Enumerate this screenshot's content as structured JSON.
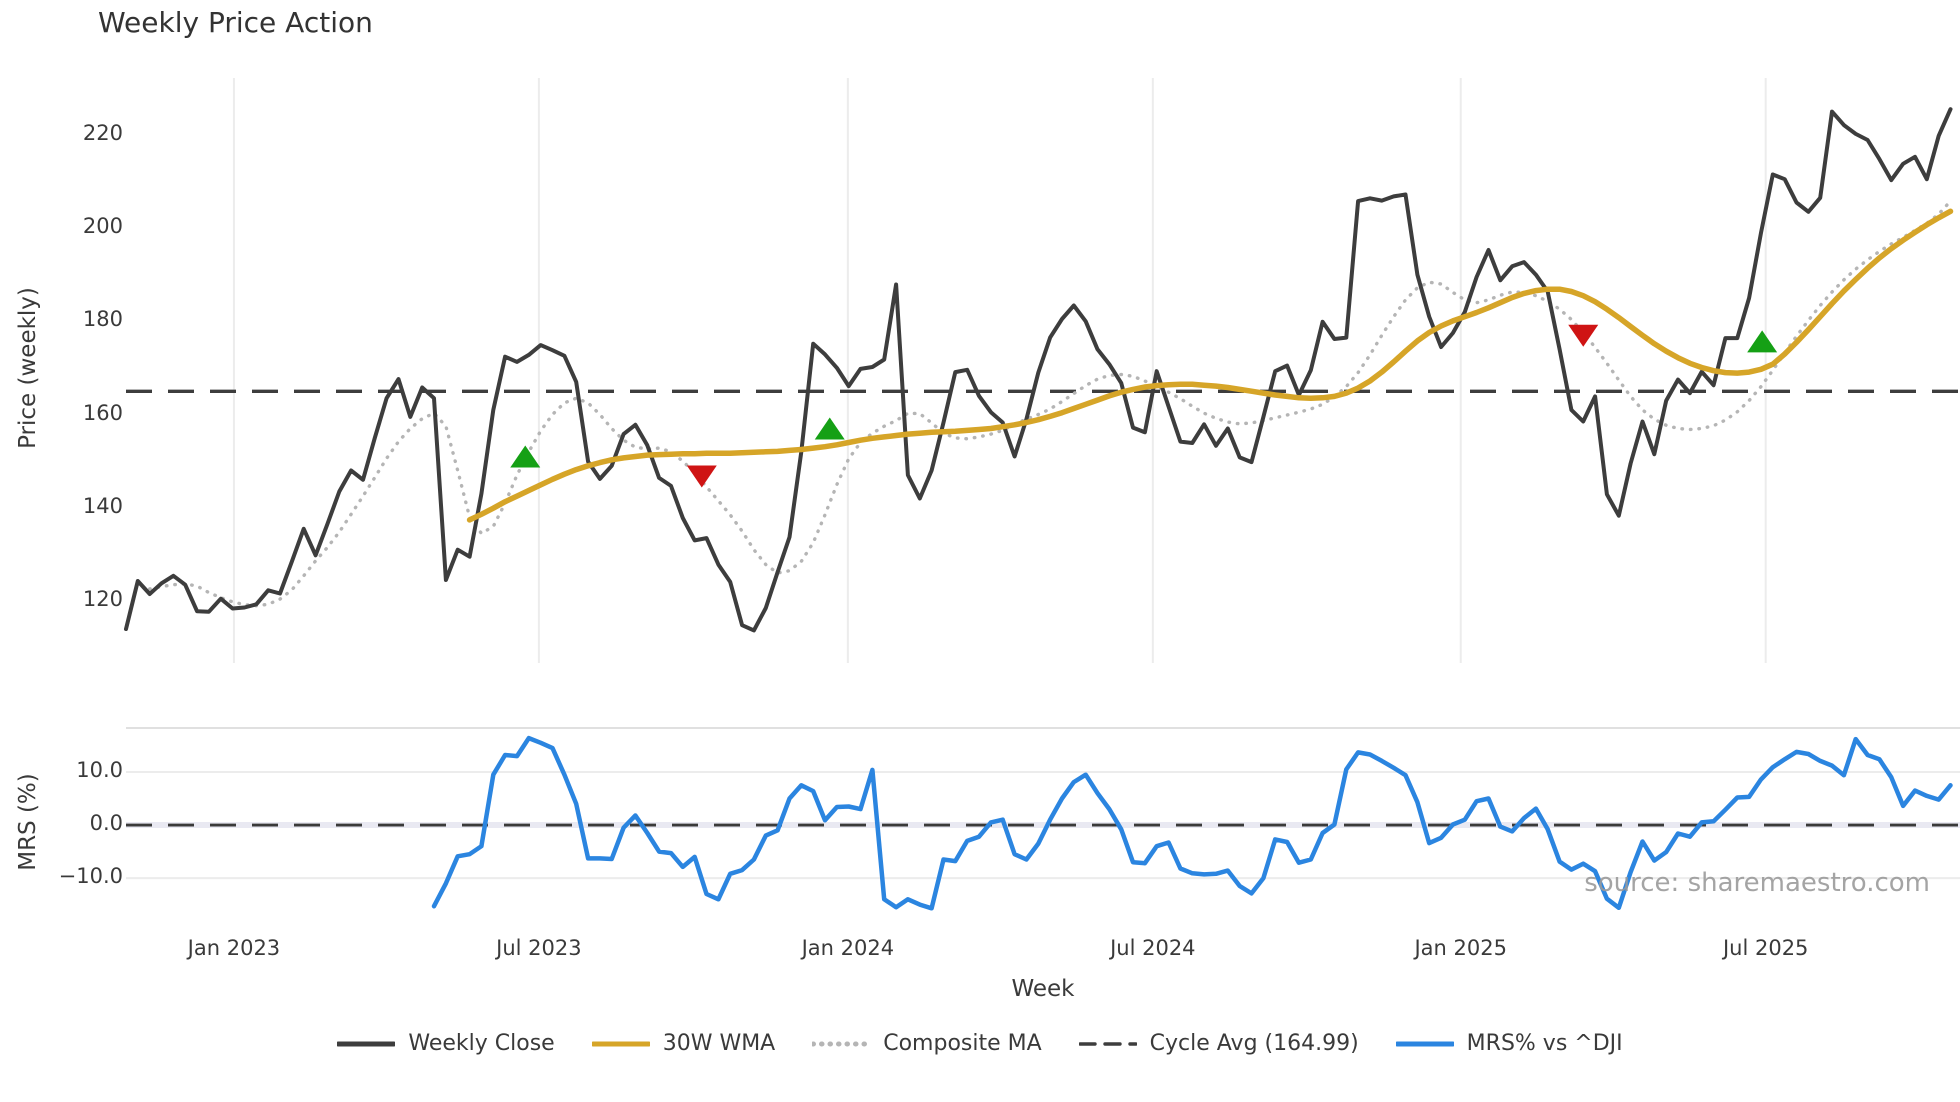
{
  "chart_data": {
    "type": "line",
    "title": "Weekly Price Action",
    "xlabel": "Week",
    "ylabel_main": "Price (weekly)",
    "ylabel_sub": "MRS (%)",
    "watermark": "source: sharemaestro.com",
    "cycle_avg": 164.99,
    "x_range": [
      0,
      154.8
    ],
    "x_unit": "week-index",
    "main_panel": {
      "ylim": [
        106.7,
        232.2
      ],
      "yticks": [
        {
          "label": "220",
          "v": 220
        },
        {
          "label": "200",
          "v": 200
        },
        {
          "label": "180",
          "v": 180
        },
        {
          "label": "160",
          "v": 160
        },
        {
          "label": "140",
          "v": 140
        },
        {
          "label": "120",
          "v": 120
        }
      ],
      "grid": "vertical-only"
    },
    "sub_panel": {
      "ylim": [
        -16.4,
        18.3
      ],
      "yticks": [
        {
          "label": "10.0",
          "v": 10
        },
        {
          "label": "0.0",
          "v": 0
        },
        {
          "label": "−10.0",
          "v": -10
        }
      ],
      "zero_line_dashed": true,
      "grid": "horizontal-only"
    },
    "xticks": [
      {
        "label": "Jan 2023",
        "i": 9.11
      },
      {
        "label": "Jul 2023",
        "i": 34.85
      },
      {
        "label": "Jan 2024",
        "i": 60.93
      },
      {
        "label": "Jul 2024",
        "i": 86.67
      },
      {
        "label": "Jan 2025",
        "i": 112.66
      },
      {
        "label": "Jul 2025",
        "i": 138.4
      }
    ],
    "colors": {
      "close": "#3d3d3d",
      "wma": "#d6a528",
      "composite": "#b5b5b5",
      "cycle": "#3d3d3d",
      "mrs": "#2b85e0",
      "buy": "#15a015",
      "sell": "#cf1414",
      "grid": "#ececec",
      "panel_border": "#d6d6d6",
      "zero_underlay": "#e9e9f2"
    },
    "series": [
      {
        "name": "Weekly Close",
        "style": "solid",
        "width": 4,
        "color_key": "close",
        "panel": "main",
        "start_index": 0,
        "values": [
          114,
          124.3,
          121.5,
          123.8,
          125.4,
          123.5,
          117.8,
          117.7,
          120.5,
          118.4,
          118.6,
          119.3,
          122.3,
          121.6,
          128.5,
          135.5,
          129.8,
          136.5,
          143.5,
          148,
          146,
          155,
          163.5,
          167.6,
          159.5,
          165.8,
          163.5,
          124.5,
          131,
          129.5,
          143,
          161,
          172.4,
          171.3,
          172.8,
          174.9,
          173.8,
          172.6,
          167,
          149.9,
          146.2,
          149,
          155.8,
          157.8,
          153.4,
          146.4,
          144.7,
          137.8,
          133,
          133.5,
          127.8,
          124.1,
          114.8,
          113.7,
          118.5,
          126.2,
          133.7,
          152,
          175.2,
          172.9,
          170,
          166.1,
          169.8,
          170.2,
          171.8,
          187.9,
          147,
          142,
          148,
          158.3,
          169.1,
          169.6,
          164,
          160.5,
          158.3,
          151,
          159,
          169,
          176.5,
          180.5,
          183.4,
          180,
          174,
          170.8,
          166.8,
          157.2,
          156.2,
          169.3,
          161.7,
          154.2,
          153.9,
          157.9,
          153.3,
          157,
          150.8,
          149.8,
          159.5,
          169.3,
          170.5,
          164.2,
          169.5,
          179.9,
          176.2,
          176.5,
          205.8,
          206.4,
          205.9,
          206.8,
          207.2,
          190,
          181,
          174.5,
          177.5,
          182,
          189.5,
          195.3,
          188.8,
          191.8,
          192.7,
          190,
          186.4,
          174,
          161,
          158.5,
          163.9,
          142.9,
          138.3,
          149.5,
          158.5,
          151.5,
          163,
          167.5,
          164.6,
          169.2,
          166.3,
          176.4,
          176.4,
          185,
          199,
          211.5,
          210.5,
          205.5,
          203.5,
          206.5,
          225,
          222.1,
          220.2,
          218.9,
          214.8,
          210.3,
          213.8,
          215.3,
          210.5,
          219.8,
          225.5
        ]
      },
      {
        "name": "30W WMA",
        "style": "solid",
        "width": 5.5,
        "color_key": "wma",
        "panel": "main",
        "start_index": 29,
        "values": [
          137.4,
          138.6,
          139.9,
          141.3,
          142.5,
          143.7,
          144.9,
          146.1,
          147.2,
          148.2,
          149,
          149.7,
          150.3,
          150.7,
          151,
          151.3,
          151.4,
          151.5,
          151.6,
          151.6,
          151.7,
          151.7,
          151.7,
          151.8,
          151.9,
          152,
          152.1,
          152.3,
          152.5,
          152.8,
          153.1,
          153.5,
          154,
          154.5,
          154.9,
          155.2,
          155.5,
          155.8,
          156,
          156.2,
          156.3,
          156.4,
          156.6,
          156.8,
          157,
          157.4,
          157.8,
          158.3,
          158.9,
          159.6,
          160.4,
          161.3,
          162.2,
          163.1,
          164,
          164.8,
          165.4,
          165.9,
          166.2,
          166.4,
          166.5,
          166.5,
          166.3,
          166.1,
          165.8,
          165.4,
          165,
          164.6,
          164.2,
          163.9,
          163.6,
          163.5,
          163.6,
          163.9,
          164.6,
          165.7,
          167.2,
          169.1,
          171.3,
          173.6,
          175.8,
          177.6,
          179,
          180.1,
          181,
          181.9,
          182.9,
          184,
          185.1,
          186,
          186.6,
          186.9,
          186.9,
          186.4,
          185.5,
          184.2,
          182.6,
          180.8,
          178.9,
          177,
          175.2,
          173.6,
          172.2,
          171,
          170.1,
          169.4,
          169,
          168.9,
          169.1,
          169.7,
          170.8,
          173,
          175.5,
          178.2,
          181,
          183.8,
          186.5,
          189,
          191.4,
          193.6,
          195.6,
          197.4,
          199.1,
          200.7,
          202.2,
          203.6
        ]
      },
      {
        "name": "Composite MA",
        "style": "dotted",
        "width": 3.4,
        "color_key": "composite",
        "panel": "main",
        "start_index": 2,
        "values": [
          122.6,
          123.1,
          123.5,
          123.7,
          123.2,
          121.8,
          120.7,
          119.8,
          119.2,
          119,
          119.3,
          120.4,
          122.4,
          125.4,
          128.6,
          131.5,
          134.8,
          138.6,
          142.5,
          146.5,
          150.6,
          154.2,
          157,
          159.1,
          160.3,
          157.5,
          148,
          138,
          134.5,
          136,
          141,
          147,
          152,
          156.5,
          160,
          162.5,
          163.5,
          162.5,
          160,
          157,
          154.5,
          153,
          152.6,
          152.8,
          152,
          150,
          147.5,
          144.5,
          141.5,
          138.5,
          135,
          131,
          127.8,
          126,
          126.5,
          128.5,
          132.5,
          138.5,
          145,
          150.5,
          154,
          156,
          157.5,
          158.7,
          160.3,
          160.2,
          158.2,
          156,
          155,
          154.8,
          155.2,
          155.8,
          156.6,
          158,
          159,
          160,
          161.2,
          162.8,
          164.5,
          166.2,
          167.6,
          168.4,
          168.6,
          168.2,
          167.2,
          166,
          164.8,
          163.4,
          161.8,
          160.3,
          159.2,
          158.4,
          158,
          158.2,
          158.7,
          159.3,
          159.9,
          160.5,
          161.2,
          162.2,
          163.8,
          166,
          169,
          172.8,
          177,
          181,
          184.6,
          187.2,
          188.4,
          188,
          186.2,
          184.6,
          184,
          184.6,
          185.6,
          186.3,
          186.2,
          185.5,
          184.3,
          182.6,
          180.4,
          177.6,
          174.4,
          171,
          167.4,
          163.9,
          161,
          159,
          157.7,
          157,
          156.8,
          157,
          157.6,
          158.8,
          160.6,
          163,
          166,
          169.5,
          173.2,
          176.8,
          180.2,
          183.4,
          186.3,
          188.9,
          191.2,
          193.2,
          195,
          196.6,
          198,
          199.5,
          201,
          203,
          205.8
        ]
      },
      {
        "name": "MRS% vs ^DJI",
        "style": "solid",
        "width": 4.5,
        "color_key": "mrs",
        "panel": "sub",
        "start_index": 26,
        "values": [
          -15.3,
          -11,
          -5.9,
          -5.5,
          -4,
          9.5,
          13.2,
          13,
          16.4,
          15.5,
          14.5,
          9.5,
          4,
          -6.3,
          -6.3,
          -6.4,
          -0.5,
          1.8,
          -1.5,
          -5,
          -5.3,
          -7.9,
          -6,
          -13,
          -14,
          -9.2,
          -8.5,
          -6.5,
          -2,
          -1,
          5,
          7.5,
          6.4,
          0.9,
          3.4,
          3.5,
          3,
          10.4,
          -14,
          -15.5,
          -14,
          -15,
          -15.7,
          -6.5,
          -6.8,
          -3,
          -2.2,
          0.5,
          1,
          -5.5,
          -6.5,
          -3.5,
          1,
          5,
          8.1,
          9.5,
          6,
          3,
          -0.8,
          -7,
          -7.2,
          -4,
          -3.3,
          -8.2,
          -9.1,
          -9.3,
          -9.2,
          -8.6,
          -11.5,
          -12.9,
          -10,
          -2.7,
          -3.2,
          -7.1,
          -6.5,
          -1.5,
          0.1,
          10.5,
          13.7,
          13.3,
          12.1,
          10.8,
          9.4,
          4.3,
          -3.4,
          -2.4,
          0.1,
          1,
          4.5,
          5,
          -0.3,
          -1.2,
          1.3,
          3.1,
          -0.8,
          -6.9,
          -8.4,
          -7.3,
          -8.7,
          -13.9,
          -15.6,
          -8.9,
          -3.1,
          -6.7,
          -5.1,
          -1.6,
          -2.2,
          0.5,
          0.7,
          2.9,
          5.2,
          5.3,
          8.6,
          10.9,
          12.4,
          13.8,
          13.4,
          12.1,
          11.2,
          9.4,
          16.2,
          13.2,
          12.4,
          9,
          3.6,
          6.5,
          5.5,
          4.8,
          7.5
        ]
      }
    ],
    "signals": [
      {
        "kind": "buy",
        "shape": "triangle-up",
        "i": 33.7,
        "value": 151.0
      },
      {
        "kind": "sell",
        "shape": "triangle-down",
        "i": 48.6,
        "value": 146.7
      },
      {
        "kind": "buy",
        "shape": "triangle-up",
        "i": 59.4,
        "value": 157.0
      },
      {
        "kind": "sell",
        "shape": "triangle-down",
        "i": 123.0,
        "value": 176.9
      },
      {
        "kind": "buy",
        "shape": "triangle-up",
        "i": 138.1,
        "value": 175.7
      }
    ],
    "legend": [
      {
        "label": "Weekly Close",
        "swatch": "solid",
        "color_key": "close"
      },
      {
        "label": "30W WMA",
        "swatch": "solid",
        "color_key": "wma"
      },
      {
        "label": "Composite MA",
        "swatch": "dotted",
        "color_key": "composite"
      },
      {
        "label": "Cycle Avg (164.99)",
        "swatch": "dashed",
        "color_key": "cycle"
      },
      {
        "label": "MRS% vs ^DJI",
        "swatch": "solid",
        "color_key": "mrs"
      }
    ],
    "legend_position": "bottom-center"
  }
}
